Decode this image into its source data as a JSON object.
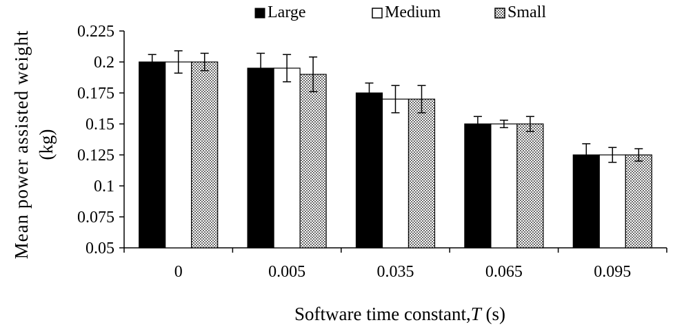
{
  "chart_data": {
    "type": "bar",
    "title": "",
    "xlabel_prefix": "Software time constant,",
    "xlabel_var": "T",
    "xlabel_suffix": " (s)",
    "ylabel_line1": "Mean power assisted weight",
    "ylabel_line2": "(kg)",
    "categories": [
      "0",
      "0.005",
      "0.035",
      "0.065",
      "0.095"
    ],
    "ylim": [
      0.05,
      0.225
    ],
    "yticks": [
      "0.225",
      "0.2",
      "0.175",
      "0.15",
      "0.125",
      "0.1",
      "0.075",
      "0.05"
    ],
    "legend_position": "top",
    "series": [
      {
        "name": "Large",
        "color": "#000000",
        "fill": "solid",
        "values": [
          0.2,
          0.195,
          0.175,
          0.15,
          0.125
        ],
        "errors": [
          0.006,
          0.012,
          0.008,
          0.006,
          0.009
        ]
      },
      {
        "name": "Medium",
        "color": "#ffffff",
        "fill": "open",
        "values": [
          0.2,
          0.195,
          0.17,
          0.15,
          0.125
        ],
        "errors": [
          0.009,
          0.011,
          0.011,
          0.003,
          0.006
        ]
      },
      {
        "name": "Small",
        "color": "#b0b0b0",
        "fill": "dotted",
        "values": [
          0.2,
          0.19,
          0.17,
          0.15,
          0.125
        ],
        "errors": [
          0.007,
          0.014,
          0.011,
          0.006,
          0.005
        ]
      }
    ],
    "grid": false
  }
}
